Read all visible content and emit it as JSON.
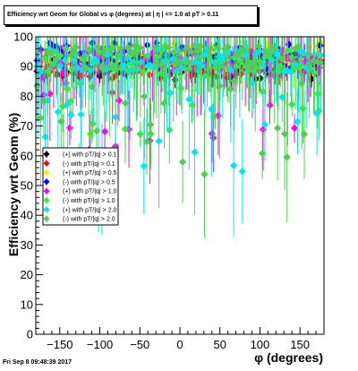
{
  "title": "Efficiency wrt Geom for Global vs φ (degrees) at | η | <= 1.0 at pT > 0.11",
  "footer": "Fri Sep  8 09:48:39 2017",
  "chart_data": {
    "type": "scatter",
    "title": "Efficiency wrt Geom for Global vs φ (degrees) at | η | <= 1.0 at pT > 0.11",
    "xlabel": "φ (degrees)",
    "ylabel": "Efficiency wrt Geom (%)",
    "xlim": [
      -180,
      180
    ],
    "ylim": [
      0,
      100
    ],
    "x_ticks": [
      -150,
      -100,
      -50,
      0,
      50,
      100,
      150
    ],
    "y_ticks": [
      0,
      10,
      20,
      30,
      40,
      50,
      60,
      70,
      80,
      90,
      100
    ],
    "grid": false,
    "legend_position": "middle-left",
    "series": [
      {
        "name": "(+) with pT/|q| > 0.1",
        "color": "#000000",
        "marker": "diamond",
        "seed": 11,
        "base": 90.5,
        "spread": 5,
        "err": 3
      },
      {
        "name": "(-) with pT/|q| > 0.1",
        "color": "#ff0000",
        "marker": "diamond",
        "seed": 23,
        "base": 90.5,
        "spread": 5,
        "err": 3
      },
      {
        "name": "(+) with pT/|q| > 0.5",
        "color": "#f0f000",
        "marker": "diamond",
        "seed": 37,
        "base": 94,
        "spread": 5,
        "err": 4
      },
      {
        "name": "(-) with pT/|q| > 0.5",
        "color": "#0000ff",
        "marker": "diamond",
        "seed": 41,
        "base": 94,
        "spread": 5,
        "err": 4
      },
      {
        "name": "(+) with pT/|q| > 1.0",
        "color": "#ff00ff",
        "marker": "diamond",
        "seed": 53,
        "base": 92,
        "spread": 30,
        "err": 12
      },
      {
        "name": "(-) with pT/|q| > 1.0",
        "color": "#33ee33",
        "marker": "diamond",
        "seed": 67,
        "base": 92,
        "spread": 25,
        "err": 10
      },
      {
        "name": "(+) with pT/|q| > 2.0",
        "color": "#00e5ff",
        "marker": "diamond",
        "seed": 79,
        "base": 92,
        "spread": 40,
        "err": 18
      },
      {
        "name": "(-) with pT/|q| > 2.0",
        "color": "#55cc55",
        "marker": "diamond",
        "seed": 97,
        "base": 93,
        "spread": 40,
        "err": 18
      }
    ]
  }
}
